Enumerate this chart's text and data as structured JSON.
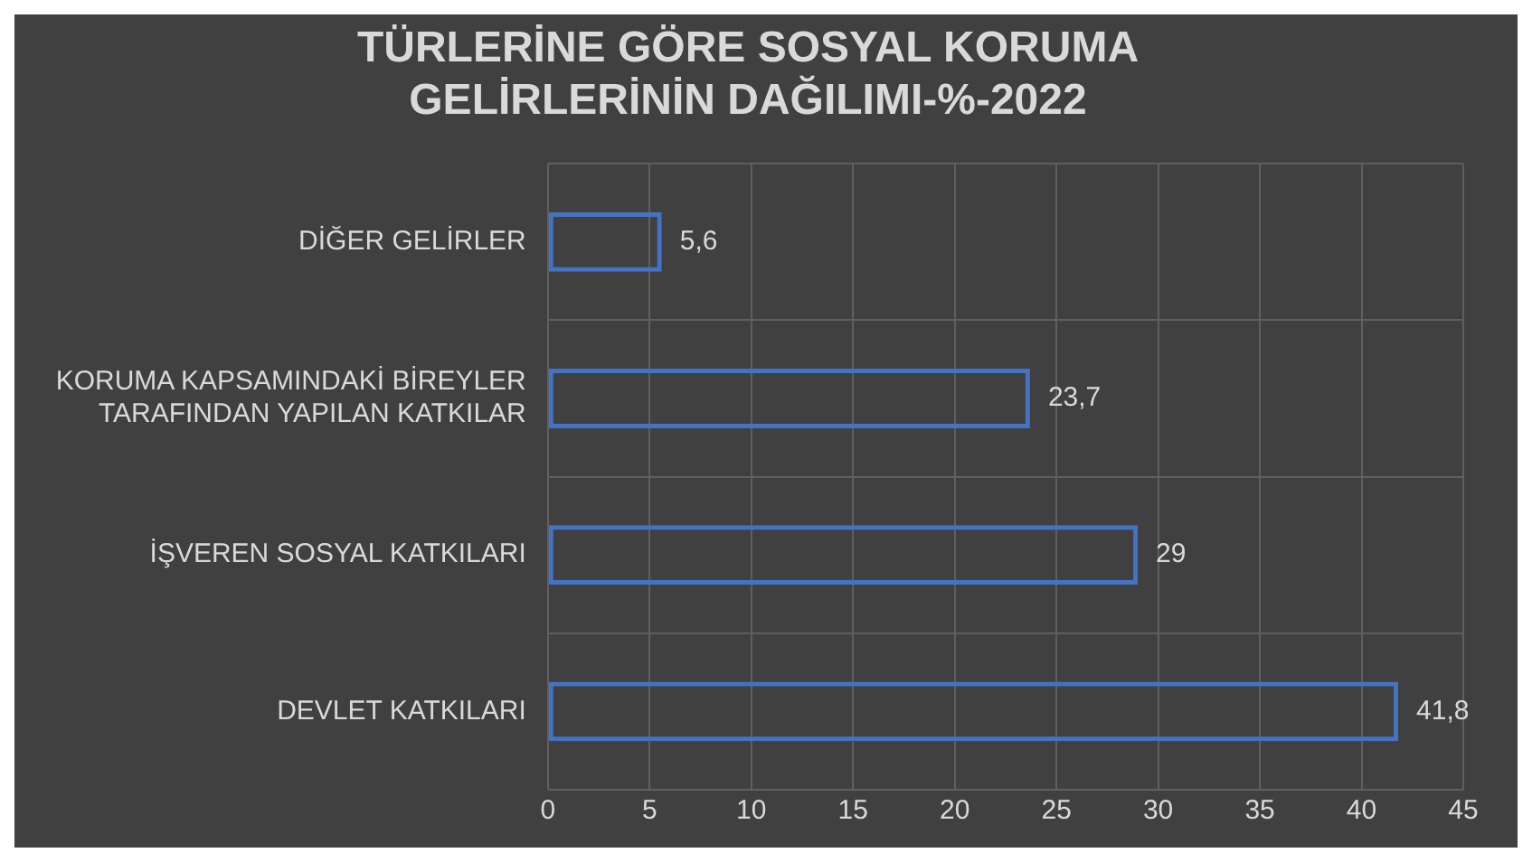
{
  "chart_data": {
    "type": "bar",
    "orientation": "horizontal",
    "title": "TÜRLERİNE GÖRE SOSYAL KORUMA GELİRLERİNİN DAĞILIMI-%-2022",
    "categories": [
      "DİĞER GELİRLER",
      "KORUMA KAPSAMINDAKİ BİREYLER TARAFINDAN YAPILAN KATKILAR",
      "İŞVEREN SOSYAL KATKILARI",
      "DEVLET KATKILARI"
    ],
    "values": [
      5.6,
      23.7,
      29,
      41.8
    ],
    "value_labels": [
      "5,6",
      "23,7",
      "29",
      "41,8"
    ],
    "color": "#4472c4",
    "xlim": [
      0,
      45
    ],
    "xticks": [
      0,
      5,
      10,
      15,
      20,
      25,
      30,
      35,
      40,
      45
    ],
    "grid": true
  }
}
